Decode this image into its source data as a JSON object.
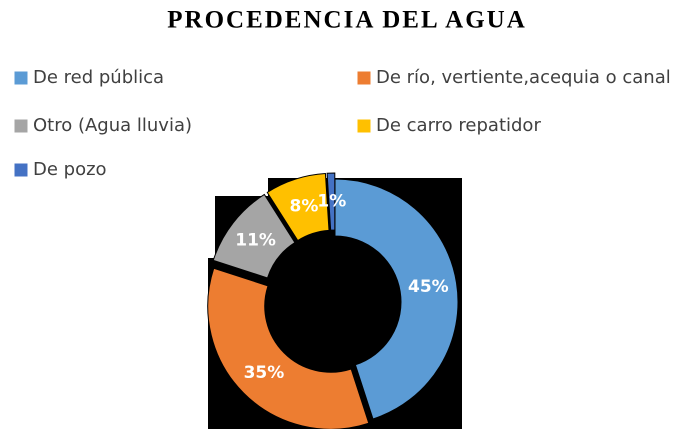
{
  "chart_data": {
    "type": "donut",
    "title": "PROCEDENCIA DEL AGUA",
    "categories": [
      "De red pública",
      "De río, vertiente,acequia o canal",
      "Otro (Agua lluvia)",
      "De carro repatidor",
      "De pozo"
    ],
    "values": [
      45,
      35,
      11,
      8,
      1
    ],
    "value_labels": [
      "45%",
      "35%",
      "11%",
      "8%",
      "1%"
    ],
    "colors": [
      "#5b9bd5",
      "#ed7d31",
      "#a5a5a5",
      "#ffc000",
      "#4472c4"
    ]
  }
}
